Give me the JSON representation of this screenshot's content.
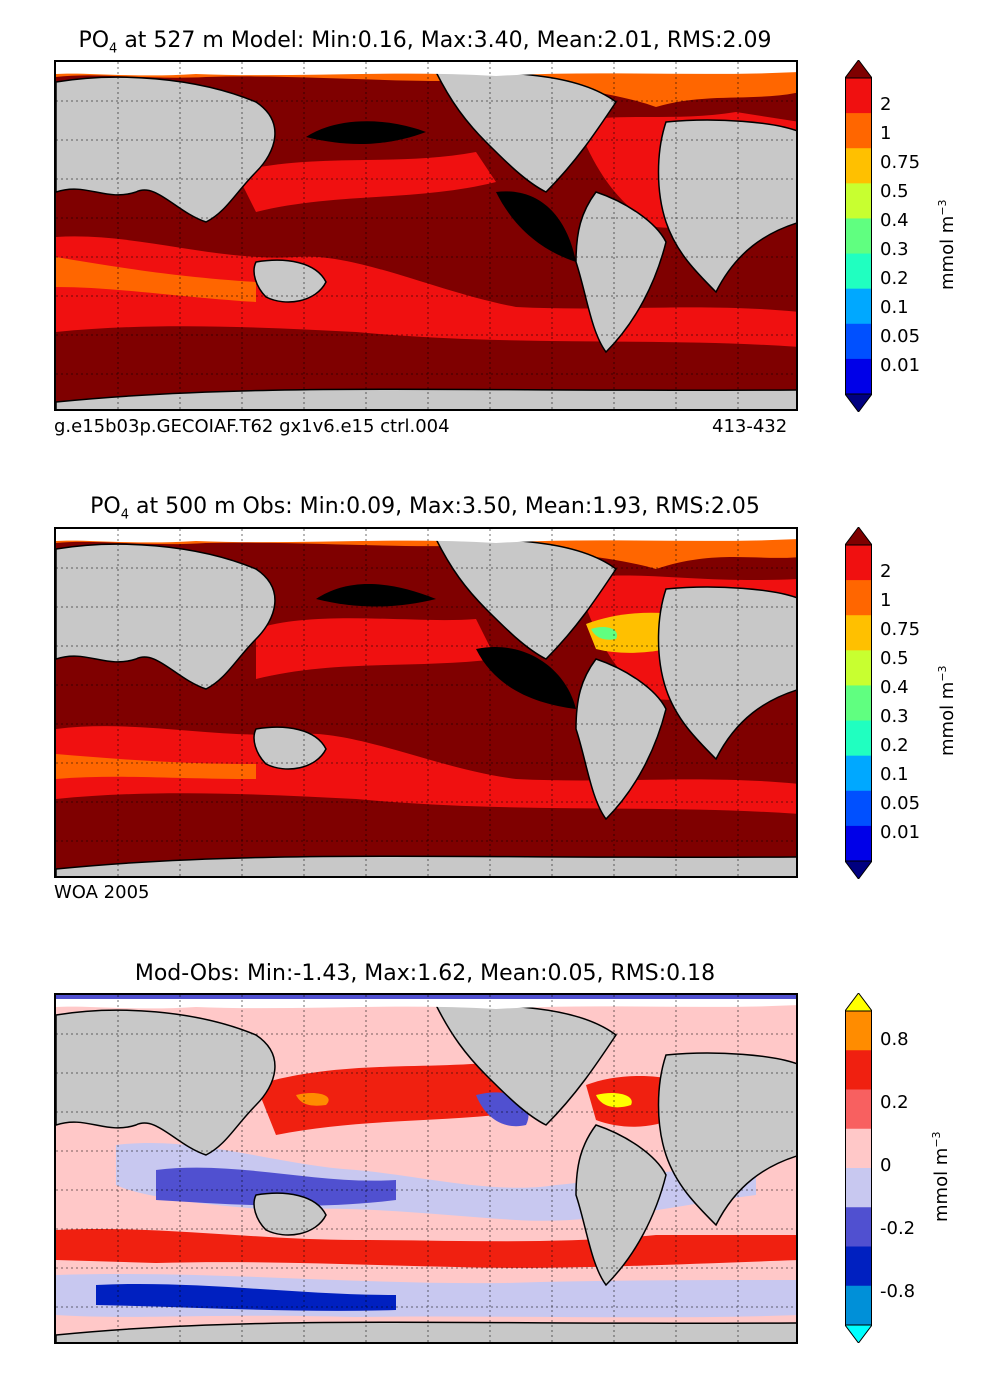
{
  "panels": [
    {
      "title_main": "PO",
      "title_sub": "4",
      "title_rest": " at 527 m Model: Min:0.16, Max:3.40, Mean:2.01, RMS:2.09",
      "footnote_left": "g.e15b03p.GECOIAF.T62 gx1v6.e15 ctrl.004",
      "footnote_right": "413-432",
      "colorbar": {
        "unit": "mmol m",
        "unit_exp": "−3",
        "ticks": [
          "2",
          "1",
          "0.75",
          "0.5",
          "0.4",
          "0.3",
          "0.2",
          "0.1",
          "0.05",
          "0.01"
        ],
        "colors": [
          "#7f0000",
          "#f01010",
          "#ff6600",
          "#ffc000",
          "#c8ff30",
          "#60ff80",
          "#20ffc0",
          "#00a8ff",
          "#0050ff",
          "#0000e8",
          "#000080"
        ]
      }
    },
    {
      "title_main": "PO",
      "title_sub": "4",
      "title_rest": " at 500 m Obs: Min:0.09, Max:3.50, Mean:1.93, RMS:2.05",
      "footnote_left": "WOA 2005",
      "footnote_right": "",
      "colorbar": {
        "unit": "mmol m",
        "unit_exp": "−3",
        "ticks": [
          "2",
          "1",
          "0.75",
          "0.5",
          "0.4",
          "0.3",
          "0.2",
          "0.1",
          "0.05",
          "0.01"
        ],
        "colors": [
          "#7f0000",
          "#f01010",
          "#ff6600",
          "#ffc000",
          "#c8ff30",
          "#60ff80",
          "#20ffc0",
          "#00a8ff",
          "#0050ff",
          "#0000e8",
          "#000080"
        ]
      }
    },
    {
      "title_main": "Mod-Obs: Min:-1.43, Max:1.62, Mean:0.05, RMS:0.18",
      "title_sub": "",
      "title_rest": "",
      "footnote_left": "",
      "footnote_right": "",
      "colorbar": {
        "unit": "mmol m",
        "unit_exp": "−3",
        "ticks": [
          "0.8",
          "0.2",
          "0",
          "-0.2",
          "-0.8"
        ],
        "colors": [
          "#ffff00",
          "#ff8c00",
          "#f02010",
          "#f86060",
          "#ffc8c8",
          "#c8c8f0",
          "#5050d0",
          "#0020c0",
          "#0090d8",
          "#00ffff"
        ]
      }
    }
  ],
  "colors": {
    "land": "#c8c8c8",
    "ice": "#ffffff",
    "deep_red": "#7f0000",
    "red": "#f01010",
    "black": "#000000"
  }
}
